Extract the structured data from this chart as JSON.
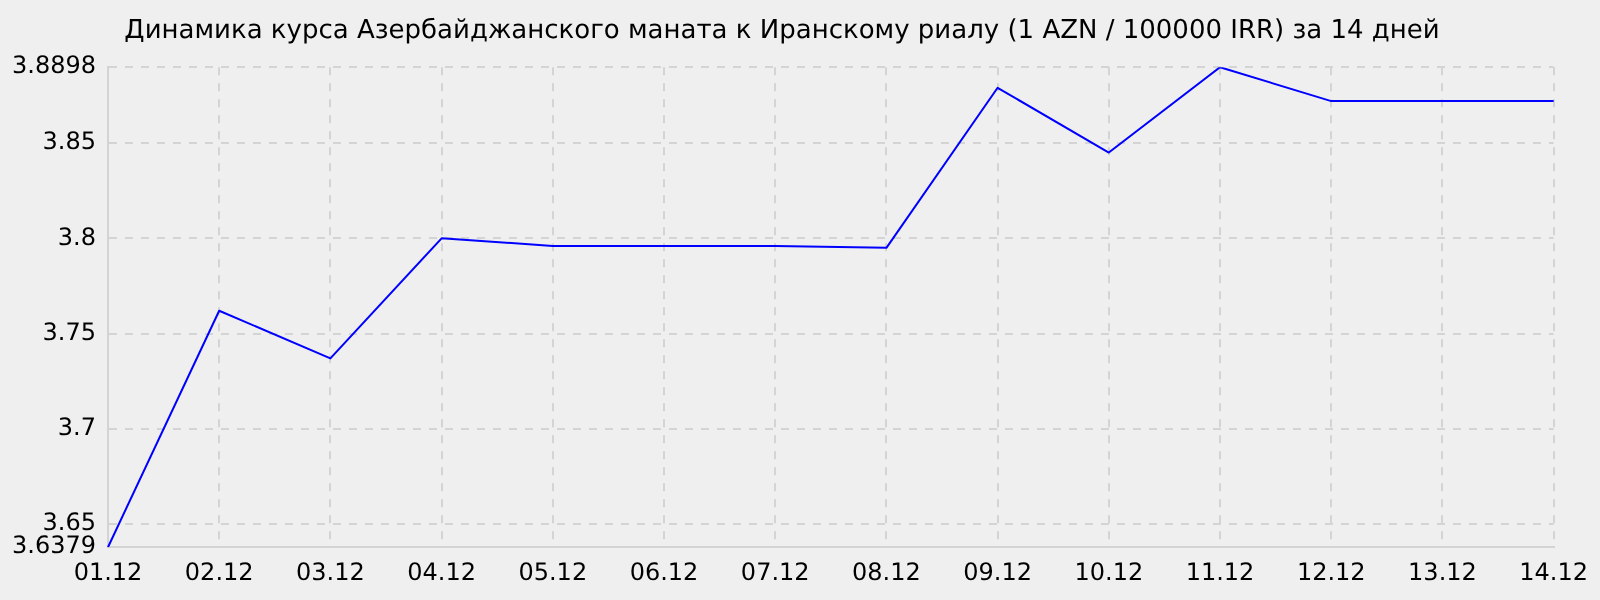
{
  "chart_data": {
    "type": "line",
    "title": "Динамика курса Азербайджанского маната к Иранскому риалу (1 AZN / 100000 IRR) за 14 дней",
    "categories": [
      "01.12",
      "02.12",
      "03.12",
      "04.12",
      "05.12",
      "06.12",
      "07.12",
      "08.12",
      "09.12",
      "10.12",
      "11.12",
      "12.12",
      "13.12",
      "14.12"
    ],
    "series": [
      {
        "color": "#0000ff",
        "values": [
          3.6379,
          3.762,
          3.737,
          3.8,
          3.796,
          3.796,
          3.796,
          3.795,
          3.879,
          3.845,
          3.8898,
          3.872,
          3.872,
          3.872
        ]
      }
    ],
    "ylim": [
      3.6379,
      3.8898
    ],
    "yticks": [
      3.6379,
      3.65,
      3.7,
      3.75,
      3.8,
      3.85,
      3.8898
    ],
    "grid": true,
    "marker": "none",
    "line_style": "solid"
  }
}
